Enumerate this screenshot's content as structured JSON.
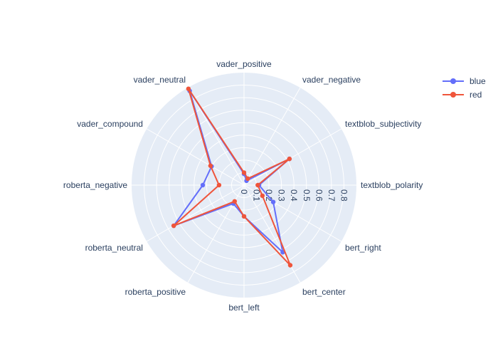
{
  "chart_data": {
    "type": "radar",
    "title": "",
    "categories": [
      "textblob_polarity",
      "textblob_subjectivity",
      "vader_negative",
      "vader_positive",
      "vader_neutral",
      "vader_compound",
      "roberta_negative",
      "roberta_neutral",
      "roberta_positive",
      "bert_left",
      "bert_center",
      "bert_right"
    ],
    "radial_ticks": [
      "0",
      "0.1",
      "0.2",
      "0.3",
      "0.4",
      "0.5",
      "0.6",
      "0.7",
      "0.8"
    ],
    "r_range": [
      0,
      0.9
    ],
    "series": [
      {
        "name": "blue",
        "color": "#636efa",
        "values": [
          0.12,
          0.42,
          0.04,
          0.09,
          0.87,
          0.3,
          0.33,
          0.65,
          0.17,
          0.25,
          0.62,
          0.27
        ]
      },
      {
        "name": "red",
        "color": "#ef553b",
        "values": [
          0.11,
          0.42,
          0.06,
          0.1,
          0.89,
          0.31,
          0.2,
          0.65,
          0.15,
          0.25,
          0.74,
          0.17
        ]
      }
    ],
    "legend_position": "top-right",
    "grid": true
  }
}
